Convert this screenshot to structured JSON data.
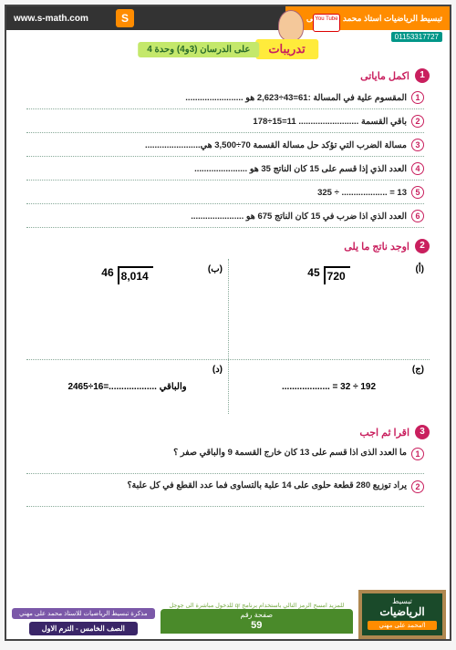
{
  "header": {
    "teacher": "تبسيط الرياضيات استاذ محمد على مهنى",
    "phone": "01153317727",
    "url": "www.s-math.com",
    "s": "S",
    "yt": "You Tube"
  },
  "title": {
    "main": "تدريبات",
    "sub": "على الدرسان (3و4) وحدة 4"
  },
  "sec1": {
    "num": "1",
    "title": "اكمل ماياتى",
    "q": [
      {
        "n": "1",
        "t": "المقسوم علية في المسالة :61=43÷2,623 هو ........................"
      },
      {
        "n": "2",
        "t": "باقي القسمة ......................... 11=15÷178"
      },
      {
        "n": "3",
        "t": "مسالة الضرب التي تؤكد حل مسالة القسمة 70÷3,500 هي......................."
      },
      {
        "n": "4",
        "t": "العدد الذي إذا قسم على 15 كان الناتج 35 هو ......................"
      },
      {
        "n": "5",
        "t": "13 = ................... ÷ 325"
      },
      {
        "n": "6",
        "t": "العدد الذي اذا ضرب في 15 كان الناتج 675 هو ......................"
      }
    ]
  },
  "sec2": {
    "num": "2",
    "title": "اوجد ناتج ما يلى",
    "a": {
      "lbl": "(أ)",
      "divisor": "45",
      "dividend": "720"
    },
    "b": {
      "lbl": "(ب)",
      "divisor": "46",
      "dividend": "8,014"
    },
    "c": {
      "lbl": "(ج)",
      "t": "192 ÷ 32 = ..................."
    },
    "d": {
      "lbl": "(د)",
      "t": "والباقي ...................=16÷2465"
    }
  },
  "sec3": {
    "num": "3",
    "title": "اقرا ثم اجب",
    "w": [
      {
        "n": "1",
        "t": "ما العدد  الذى  اذا قسم على 13 كان خارج القسمة  9 والباقي صفر ؟"
      },
      {
        "n": "2",
        "t": "يراد توزيع 280 قطعة حلوى على 14 علبة بالتساوى فما عدد القطع في كل علبة؟"
      }
    ]
  },
  "footer": {
    "board": {
      "top": "تبسيط",
      "mid": "الرياضيات",
      "strip": "ا/محمد على مهني"
    },
    "note": "للمزيد امسح الرمز التالي باستخدام برنامج\nqr للدخول مباشرة الى جوجل",
    "page": {
      "label": "صفحة رقم",
      "num": "59"
    },
    "pillA": "مذكرة تبسيط الرياضيات للاستاذ محمد على مهني",
    "pillB": "الصف الخامس - الترم الاول"
  }
}
